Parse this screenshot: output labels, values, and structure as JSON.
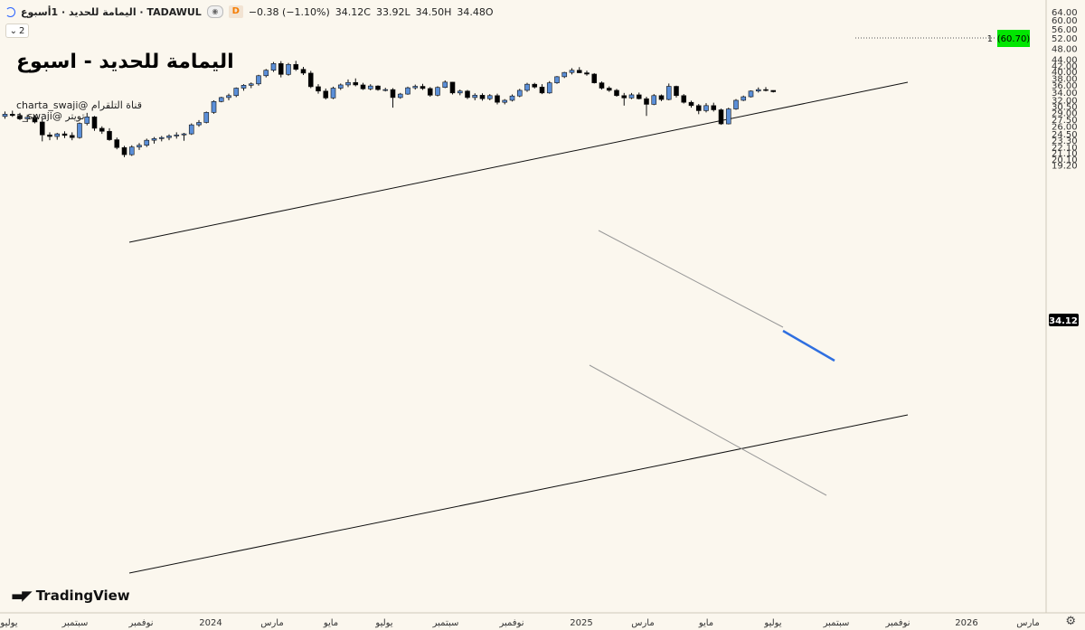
{
  "header": {
    "symbol": "اليمامة للحديد · 1أسبوع · TADAWUL",
    "interval_badge": "D",
    "change": "−0.38 (−1.10%)",
    "close_label": "34.12C",
    "low_label": "33.92L",
    "high_label": "34.50H",
    "open_label": "34.48O"
  },
  "indicator_count": "2",
  "title": "اليمامة للحديد - اسبوع",
  "handles": [
    "charta_swaji@ قناة التلقرام",
    "a_swaji@ تويتر"
  ],
  "logo_text": "TradingView",
  "colors": {
    "background": "#fbf7ee",
    "up_candle": "#5b8fd8",
    "down_candle": "#000000",
    "current_price_tag": "#000000",
    "target_tag": "#00e600",
    "blue_trendline": "#2f6fe0"
  },
  "chart_data": {
    "type": "candlestick",
    "y_axis": {
      "ticks": [
        "64.00",
        "60.00",
        "56.00",
        "52.00",
        "48.00",
        "44.00",
        "42.00",
        "40.00",
        "38.00",
        "36.00",
        "34.00",
        "32.00",
        "30.50",
        "29.00",
        "27.50",
        "26.00",
        "24.50",
        "23.30",
        "22.10",
        "21.10",
        "20.10",
        "19.20"
      ],
      "range": [
        18.8,
        66.0
      ],
      "scale": "log"
    },
    "x_axis": {
      "labels": [
        "يوليو",
        "سبتمبر",
        "نوفمبر",
        "2024",
        "مارس",
        "مايو",
        "يوليو",
        "سبتمبر",
        "نوفمبر",
        "2025",
        "مارس",
        "مايو",
        "يوليو",
        "سبتمبر",
        "نوفمبر",
        "2026",
        "مارس"
      ]
    },
    "current_price": "34.12",
    "target_label": "1",
    "target_price": "(60.70)",
    "candles": [
      [
        28.1,
        29.2,
        27.6,
        28.6
      ],
      [
        28.6,
        29.4,
        28.0,
        28.3
      ],
      [
        28.3,
        28.9,
        27.3,
        27.6
      ],
      [
        27.6,
        28.5,
        26.9,
        27.9
      ],
      [
        27.9,
        28.4,
        26.6,
        26.9
      ],
      [
        26.9,
        27.5,
        23.1,
        24.3
      ],
      [
        24.3,
        24.8,
        23.3,
        24.0
      ],
      [
        24.0,
        24.7,
        23.4,
        24.5
      ],
      [
        24.5,
        25.0,
        23.7,
        24.2
      ],
      [
        24.2,
        24.8,
        23.3,
        23.8
      ],
      [
        23.8,
        26.8,
        23.6,
        26.6
      ],
      [
        26.6,
        28.9,
        26.2,
        28.0
      ],
      [
        28.0,
        28.2,
        25.1,
        25.6
      ],
      [
        25.6,
        26.0,
        24.5,
        25.0
      ],
      [
        25.0,
        25.6,
        23.2,
        23.4
      ],
      [
        23.4,
        23.8,
        21.7,
        22.0
      ],
      [
        22.0,
        22.3,
        20.4,
        20.8
      ],
      [
        20.8,
        22.4,
        20.6,
        22.1
      ],
      [
        22.1,
        22.8,
        21.6,
        22.4
      ],
      [
        22.4,
        23.6,
        22.1,
        23.3
      ],
      [
        23.3,
        23.9,
        22.7,
        23.6
      ],
      [
        23.6,
        24.1,
        23.1,
        23.8
      ],
      [
        23.8,
        24.4,
        23.3,
        24.1
      ],
      [
        24.1,
        24.8,
        23.6,
        24.3
      ],
      [
        24.3,
        24.7,
        23.2,
        24.5
      ],
      [
        24.5,
        26.6,
        24.3,
        26.3
      ],
      [
        26.3,
        27.3,
        25.9,
        26.8
      ],
      [
        26.8,
        29.2,
        26.6,
        29.0
      ],
      [
        29.0,
        31.9,
        28.7,
        31.6
      ],
      [
        31.6,
        32.8,
        31.4,
        32.6
      ],
      [
        32.6,
        33.6,
        31.9,
        33.1
      ],
      [
        33.1,
        35.3,
        32.7,
        35.1
      ],
      [
        35.1,
        36.2,
        34.4,
        35.9
      ],
      [
        35.9,
        36.7,
        35.1,
        36.3
      ],
      [
        36.3,
        39.0,
        35.8,
        38.7
      ],
      [
        38.7,
        40.8,
        38.2,
        40.4
      ],
      [
        40.4,
        43.1,
        39.9,
        42.6
      ],
      [
        42.6,
        43.4,
        38.2,
        39.1
      ],
      [
        39.1,
        42.8,
        38.7,
        42.3
      ],
      [
        42.3,
        43.5,
        40.2,
        40.7
      ],
      [
        40.7,
        41.5,
        38.9,
        39.5
      ],
      [
        39.5,
        40.2,
        35.1,
        35.5
      ],
      [
        35.5,
        36.2,
        33.6,
        34.3
      ],
      [
        34.3,
        35.0,
        32.1,
        32.5
      ],
      [
        32.5,
        35.5,
        32.2,
        35.1
      ],
      [
        35.1,
        36.4,
        34.6,
        36.0
      ],
      [
        36.0,
        37.6,
        35.4,
        36.7
      ],
      [
        36.7,
        37.9,
        35.6,
        36.0
      ],
      [
        36.0,
        36.6,
        34.6,
        34.9
      ],
      [
        34.9,
        36.2,
        34.5,
        35.7
      ],
      [
        35.7,
        35.9,
        34.4,
        34.7
      ],
      [
        34.7,
        35.2,
        34.2,
        34.7
      ],
      [
        34.7,
        35.1,
        30.1,
        32.6
      ],
      [
        32.6,
        33.8,
        32.3,
        33.5
      ],
      [
        33.5,
        35.5,
        33.3,
        35.2
      ],
      [
        35.2,
        36.1,
        34.7,
        35.6
      ],
      [
        35.6,
        36.3,
        34.6,
        35.0
      ],
      [
        35.0,
        35.4,
        32.8,
        33.2
      ],
      [
        33.2,
        35.6,
        32.9,
        35.3
      ],
      [
        35.3,
        37.3,
        35.1,
        36.8
      ],
      [
        36.8,
        36.9,
        33.4,
        33.8
      ],
      [
        33.8,
        34.7,
        33.2,
        34.3
      ],
      [
        34.3,
        34.6,
        32.2,
        32.6
      ],
      [
        32.6,
        33.7,
        31.9,
        33.2
      ],
      [
        33.2,
        33.7,
        31.8,
        32.3
      ],
      [
        32.3,
        33.5,
        31.9,
        33.1
      ],
      [
        33.1,
        33.6,
        30.9,
        31.4
      ],
      [
        31.4,
        32.2,
        30.9,
        31.9
      ],
      [
        31.9,
        33.4,
        31.6,
        33.0
      ],
      [
        33.0,
        34.9,
        32.7,
        34.5
      ],
      [
        34.5,
        36.6,
        34.1,
        36.2
      ],
      [
        36.2,
        36.6,
        35.0,
        35.4
      ],
      [
        35.4,
        36.2,
        33.5,
        33.8
      ],
      [
        33.8,
        37.1,
        33.6,
        36.6
      ],
      [
        36.6,
        38.6,
        36.3,
        38.4
      ],
      [
        38.4,
        39.9,
        38.0,
        39.7
      ],
      [
        39.7,
        41.1,
        39.1,
        40.4
      ],
      [
        40.4,
        41.4,
        39.5,
        39.6
      ],
      [
        39.6,
        40.3,
        38.7,
        39.2
      ],
      [
        39.2,
        39.5,
        36.4,
        36.6
      ],
      [
        36.6,
        37.0,
        34.7,
        35.1
      ],
      [
        35.1,
        35.6,
        34.1,
        34.5
      ],
      [
        34.5,
        34.9,
        32.8,
        33.1
      ],
      [
        33.1,
        33.8,
        30.6,
        32.5
      ],
      [
        32.5,
        33.8,
        32.2,
        33.3
      ],
      [
        33.3,
        33.9,
        32.1,
        32.3
      ],
      [
        32.3,
        32.8,
        28.2,
        30.9
      ],
      [
        30.9,
        33.5,
        30.7,
        33.1
      ],
      [
        33.1,
        33.4,
        31.7,
        32.1
      ],
      [
        32.1,
        36.4,
        31.9,
        35.6
      ],
      [
        35.6,
        35.8,
        32.6,
        33.1
      ],
      [
        33.1,
        33.5,
        31.1,
        31.4
      ],
      [
        31.4,
        31.8,
        30.1,
        30.6
      ],
      [
        30.6,
        31.0,
        28.6,
        29.4
      ],
      [
        29.4,
        31.2,
        29.0,
        30.6
      ],
      [
        30.6,
        31.3,
        29.2,
        29.6
      ],
      [
        29.6,
        29.9,
        26.3,
        26.5
      ],
      [
        26.5,
        30.1,
        26.4,
        29.8
      ],
      [
        29.8,
        32.2,
        29.6,
        31.9
      ],
      [
        31.9,
        33.1,
        31.7,
        32.8
      ],
      [
        32.8,
        34.5,
        32.6,
        34.3
      ],
      [
        34.3,
        35.3,
        33.9,
        34.7
      ],
      [
        34.7,
        35.4,
        34.2,
        34.6
      ],
      [
        34.48,
        34.5,
        33.92,
        34.12
      ]
    ]
  }
}
